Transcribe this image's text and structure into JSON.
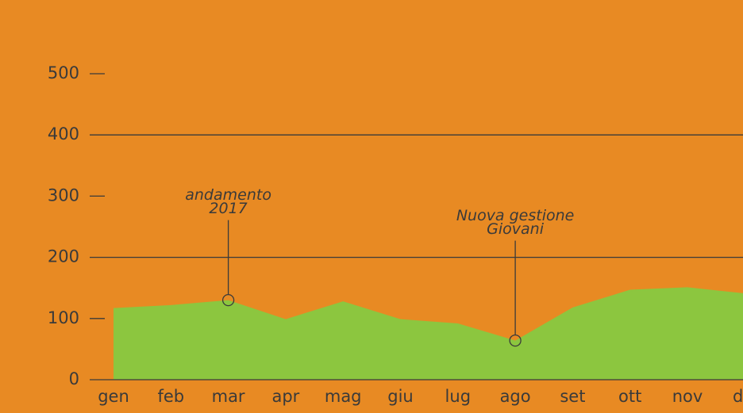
{
  "chart_data": {
    "type": "area",
    "categories": [
      "gen",
      "feb",
      "mar",
      "apr",
      "mag",
      "giu",
      "lug",
      "ago",
      "set",
      "ott",
      "nov",
      "dic"
    ],
    "values": [
      117,
      122,
      130,
      99,
      128,
      99,
      92,
      64,
      118,
      147,
      151,
      141
    ],
    "color": "#8cc63f",
    "ylim": [
      0,
      500
    ],
    "yticks": [
      0,
      100,
      200,
      300,
      400,
      500
    ],
    "annotations": [
      {
        "lines": [
          "andamento",
          "2017"
        ],
        "category": "mar"
      },
      {
        "lines": [
          "Nuova gestione",
          "Giovani"
        ],
        "category": "ago"
      }
    ]
  }
}
